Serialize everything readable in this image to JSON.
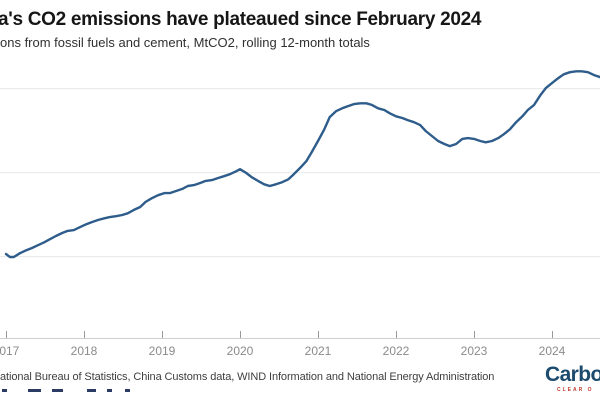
{
  "header": {
    "title": "a's CO2 emissions have plateaued since February 2024",
    "subtitle": "ons from fossil fuels and cement, MtCO2, rolling 12-month totals"
  },
  "footer": {
    "source": "ational Bureau of Statistics, China Customs data, WIND Information and National Energy Administration",
    "logo_text": "Carbon",
    "logo_tagline": "CLEAR O",
    "clipped_caption_fragments": [
      {
        "x": 2,
        "w": 5
      },
      {
        "x": 28,
        "w": 13
      },
      {
        "x": 52,
        "w": 11
      },
      {
        "x": 87,
        "w": 9
      },
      {
        "x": 107,
        "w": 5
      },
      {
        "x": 125,
        "w": 5
      }
    ]
  },
  "colors": {
    "line": "#2e5c8b",
    "gridline": "#e8e8e8",
    "axis_line": "#cfcfcf",
    "tick": "#9a9a9a",
    "logo_navy": "#1d4b6e",
    "logo_red": "#c0392b"
  },
  "chart_data": {
    "type": "line",
    "title": "a's CO2 emissions have plateaued since February 2024",
    "subtitle": "ons from fossil fuels and cement, MtCO2, rolling 12-month totals",
    "ylabel": "MtCO2 (rolling 12-month totals)",
    "y_axis_labels_visible": false,
    "grid": "horizontal",
    "legend": "none",
    "x_domain": [
      2016.923,
      2024.615
    ],
    "y_domain": [
      9025,
      12335
    ],
    "y_gridline_values": [
      12000,
      11000,
      10000
    ],
    "x_ticks": [
      {
        "year": 2017,
        "label": "2017"
      },
      {
        "year": 2018,
        "label": "2018"
      },
      {
        "year": 2019,
        "label": "2019"
      },
      {
        "year": 2020,
        "label": "2020"
      },
      {
        "year": 2021,
        "label": "2021"
      },
      {
        "year": 2022,
        "label": "2022"
      },
      {
        "year": 2023,
        "label": "2023"
      },
      {
        "year": 2024,
        "label": "2024"
      }
    ],
    "series": [
      {
        "name": "CO2 emissions",
        "points": [
          [
            2017.0,
            10025
          ],
          [
            2017.05,
            9990
          ],
          [
            2017.1,
            9990
          ],
          [
            2017.18,
            10035
          ],
          [
            2017.26,
            10070
          ],
          [
            2017.33,
            10095
          ],
          [
            2017.41,
            10130
          ],
          [
            2017.49,
            10165
          ],
          [
            2017.56,
            10200
          ],
          [
            2017.64,
            10240
          ],
          [
            2017.72,
            10275
          ],
          [
            2017.79,
            10300
          ],
          [
            2017.87,
            10310
          ],
          [
            2017.95,
            10345
          ],
          [
            2018.03,
            10380
          ],
          [
            2018.1,
            10405
          ],
          [
            2018.18,
            10430
          ],
          [
            2018.26,
            10450
          ],
          [
            2018.33,
            10465
          ],
          [
            2018.41,
            10475
          ],
          [
            2018.49,
            10490
          ],
          [
            2018.56,
            10510
          ],
          [
            2018.64,
            10550
          ],
          [
            2018.72,
            10585
          ],
          [
            2018.79,
            10645
          ],
          [
            2018.87,
            10690
          ],
          [
            2018.95,
            10725
          ],
          [
            2019.03,
            10750
          ],
          [
            2019.1,
            10750
          ],
          [
            2019.18,
            10775
          ],
          [
            2019.26,
            10800
          ],
          [
            2019.33,
            10835
          ],
          [
            2019.41,
            10845
          ],
          [
            2019.49,
            10870
          ],
          [
            2019.56,
            10895
          ],
          [
            2019.64,
            10905
          ],
          [
            2019.72,
            10930
          ],
          [
            2019.79,
            10950
          ],
          [
            2019.87,
            10975
          ],
          [
            2019.95,
            11010
          ],
          [
            2020.0,
            11035
          ],
          [
            2020.08,
            10990
          ],
          [
            2020.15,
            10940
          ],
          [
            2020.23,
            10895
          ],
          [
            2020.31,
            10855
          ],
          [
            2020.38,
            10835
          ],
          [
            2020.46,
            10855
          ],
          [
            2020.54,
            10880
          ],
          [
            2020.62,
            10915
          ],
          [
            2020.69,
            10975
          ],
          [
            2020.77,
            11050
          ],
          [
            2020.85,
            11130
          ],
          [
            2020.92,
            11240
          ],
          [
            2021.0,
            11370
          ],
          [
            2021.08,
            11510
          ],
          [
            2021.15,
            11655
          ],
          [
            2021.23,
            11725
          ],
          [
            2021.31,
            11760
          ],
          [
            2021.38,
            11785
          ],
          [
            2021.46,
            11810
          ],
          [
            2021.54,
            11820
          ],
          [
            2021.62,
            11820
          ],
          [
            2021.69,
            11800
          ],
          [
            2021.77,
            11760
          ],
          [
            2021.85,
            11740
          ],
          [
            2021.92,
            11700
          ],
          [
            2022.0,
            11665
          ],
          [
            2022.08,
            11645
          ],
          [
            2022.15,
            11620
          ],
          [
            2022.23,
            11595
          ],
          [
            2022.31,
            11560
          ],
          [
            2022.38,
            11490
          ],
          [
            2022.46,
            11430
          ],
          [
            2022.54,
            11370
          ],
          [
            2022.62,
            11335
          ],
          [
            2022.69,
            11310
          ],
          [
            2022.77,
            11335
          ],
          [
            2022.85,
            11395
          ],
          [
            2022.92,
            11405
          ],
          [
            2023.0,
            11395
          ],
          [
            2023.08,
            11370
          ],
          [
            2023.15,
            11355
          ],
          [
            2023.23,
            11370
          ],
          [
            2023.31,
            11405
          ],
          [
            2023.38,
            11450
          ],
          [
            2023.46,
            11510
          ],
          [
            2023.54,
            11595
          ],
          [
            2023.62,
            11665
          ],
          [
            2023.69,
            11740
          ],
          [
            2023.77,
            11800
          ],
          [
            2023.85,
            11915
          ],
          [
            2023.92,
            12000
          ],
          [
            2024.0,
            12060
          ],
          [
            2024.08,
            12120
          ],
          [
            2024.15,
            12165
          ],
          [
            2024.23,
            12190
          ],
          [
            2024.31,
            12200
          ],
          [
            2024.38,
            12200
          ],
          [
            2024.46,
            12190
          ],
          [
            2024.54,
            12155
          ],
          [
            2024.62,
            12130
          ]
        ]
      }
    ]
  }
}
